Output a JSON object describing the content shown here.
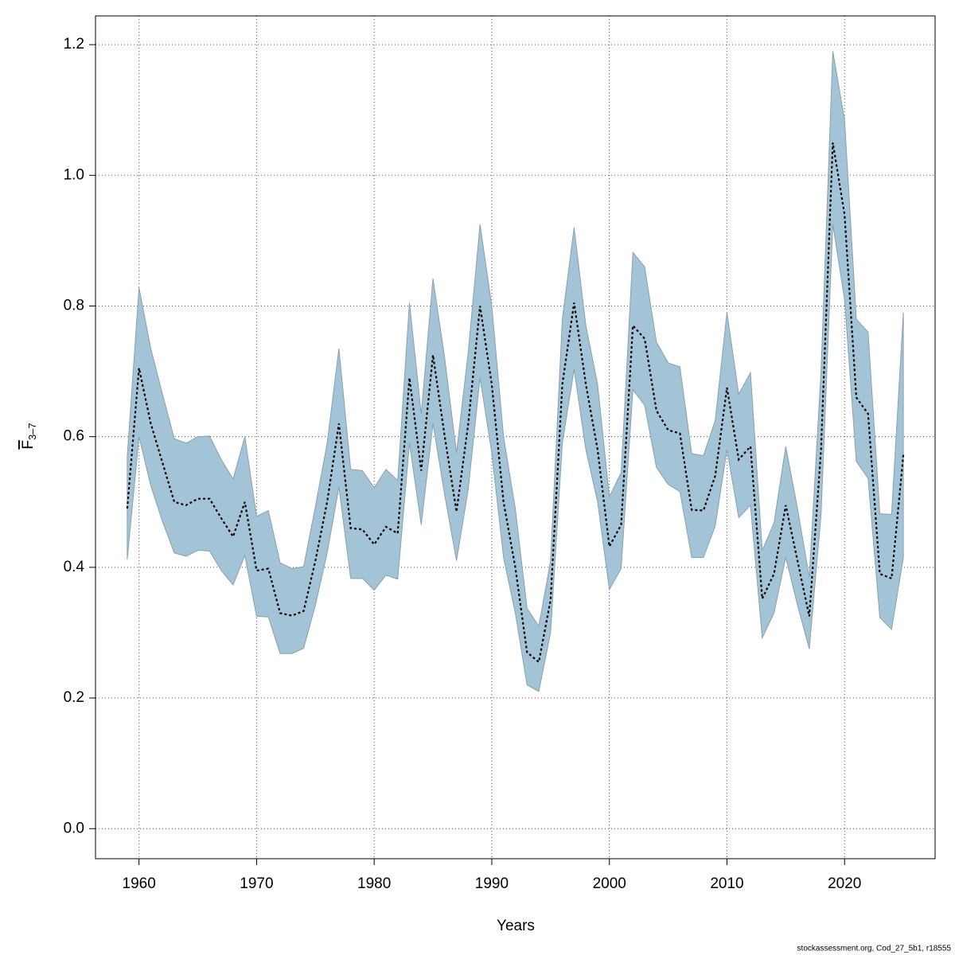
{
  "chart_data": {
    "type": "band-line",
    "xlabel": "Years",
    "ylabel_main": "F",
    "ylabel_sub": "3–7",
    "footer": "stockassessment.org, Cod_27_5b1, r18555",
    "x": [
      1959,
      1960,
      1961,
      1962,
      1963,
      1964,
      1965,
      1966,
      1967,
      1968,
      1969,
      1970,
      1971,
      1972,
      1973,
      1974,
      1975,
      1976,
      1977,
      1978,
      1979,
      1980,
      1981,
      1982,
      1983,
      1984,
      1985,
      1986,
      1987,
      1988,
      1989,
      1990,
      1991,
      1992,
      1993,
      1994,
      1995,
      1996,
      1997,
      1998,
      1999,
      2000,
      2001,
      2002,
      2003,
      2004,
      2005,
      2006,
      2007,
      2008,
      2009,
      2010,
      2011,
      2012,
      2013,
      2014,
      2015,
      2016,
      2017,
      2018,
      2019,
      2020,
      2021,
      2022,
      2023,
      2024,
      2025
    ],
    "values": [
      0.49,
      0.705,
      0.62,
      0.56,
      0.5,
      0.495,
      0.505,
      0.505,
      0.475,
      0.447,
      0.5,
      0.395,
      0.398,
      0.33,
      0.326,
      0.333,
      0.41,
      0.5,
      0.62,
      0.46,
      0.458,
      0.435,
      0.462,
      0.452,
      0.69,
      0.548,
      0.725,
      0.6,
      0.485,
      0.62,
      0.8,
      0.68,
      0.5,
      0.4,
      0.27,
      0.255,
      0.35,
      0.68,
      0.805,
      0.68,
      0.58,
      0.432,
      0.465,
      0.77,
      0.75,
      0.64,
      0.61,
      0.605,
      0.488,
      0.487,
      0.54,
      0.675,
      0.565,
      0.585,
      0.352,
      0.39,
      0.495,
      0.41,
      0.325,
      0.58,
      1.05,
      0.94,
      0.66,
      0.635,
      0.39,
      0.383,
      0.572
    ],
    "upper": [
      0.57,
      0.828,
      0.735,
      0.665,
      0.597,
      0.59,
      0.6,
      0.601,
      0.565,
      0.535,
      0.6,
      0.478,
      0.487,
      0.407,
      0.398,
      0.401,
      0.493,
      0.59,
      0.735,
      0.55,
      0.548,
      0.522,
      0.55,
      0.533,
      0.805,
      0.635,
      0.842,
      0.72,
      0.575,
      0.73,
      0.925,
      0.8,
      0.6,
      0.49,
      0.337,
      0.31,
      0.41,
      0.78,
      0.92,
      0.77,
      0.68,
      0.508,
      0.545,
      0.882,
      0.86,
      0.745,
      0.713,
      0.707,
      0.574,
      0.571,
      0.625,
      0.79,
      0.665,
      0.698,
      0.426,
      0.468,
      0.585,
      0.49,
      0.385,
      0.7,
      1.19,
      1.085,
      0.78,
      0.76,
      0.482,
      0.481,
      0.79
    ],
    "lower": [
      0.412,
      0.6,
      0.525,
      0.47,
      0.422,
      0.417,
      0.426,
      0.425,
      0.395,
      0.373,
      0.418,
      0.325,
      0.324,
      0.268,
      0.268,
      0.276,
      0.342,
      0.422,
      0.523,
      0.383,
      0.383,
      0.365,
      0.388,
      0.382,
      0.59,
      0.465,
      0.62,
      0.51,
      0.41,
      0.52,
      0.69,
      0.575,
      0.415,
      0.33,
      0.22,
      0.21,
      0.3,
      0.59,
      0.703,
      0.58,
      0.5,
      0.366,
      0.398,
      0.672,
      0.648,
      0.553,
      0.527,
      0.516,
      0.415,
      0.415,
      0.463,
      0.58,
      0.476,
      0.495,
      0.292,
      0.33,
      0.415,
      0.342,
      0.275,
      0.48,
      0.925,
      0.81,
      0.562,
      0.536,
      0.323,
      0.305,
      0.415
    ],
    "line_color": "#000000",
    "band_color": "#a3c4d6",
    "xlim": [
      1956.3,
      2027.7
    ],
    "ylim": [
      -0.046,
      1.244
    ],
    "xticks": [
      1960,
      1970,
      1980,
      1990,
      2000,
      2010,
      2020
    ],
    "yticks": [
      {
        "value": 0,
        "label": "0.0"
      },
      0.2,
      0.4,
      0.6,
      0.8,
      {
        "value": 1,
        "label": "1.0"
      },
      1.2
    ],
    "grid": true
  }
}
